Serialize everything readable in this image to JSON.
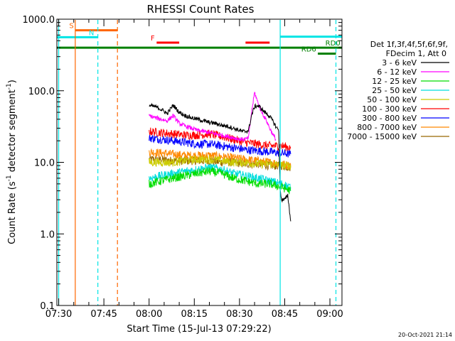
{
  "chart_data": {
    "type": "line",
    "title": "RHESSI Count Rates",
    "xlabel": "Start Time (15-Jul-13 07:29:22)",
    "ylabel_prefix": "Count Rate (s",
    "ylabel_sup": "-1",
    "ylabel_mid": " detector segment",
    "ylabel_sup2": "-1",
    "ylabel_suffix": ")",
    "y_scale": "log",
    "ylim": [
      0.1,
      1000
    ],
    "xlim_minutes": [
      -0.6,
      94
    ],
    "x_ticks": [
      {
        "minute": 0,
        "label": "07:30"
      },
      {
        "minute": 15,
        "label": "07:45"
      },
      {
        "minute": 30,
        "label": "08:00"
      },
      {
        "minute": 45,
        "label": "08:15"
      },
      {
        "minute": 60,
        "label": "08:30"
      },
      {
        "minute": 75,
        "label": "08:45"
      },
      {
        "minute": 90,
        "label": "09:00"
      }
    ],
    "y_ticks": [
      {
        "value": 1000,
        "label": "1000.0"
      },
      {
        "value": 100,
        "label": "100.0"
      },
      {
        "value": 10,
        "label": "10.0"
      },
      {
        "value": 1,
        "label": "1.0"
      },
      {
        "value": 0.1,
        "label": "0.1"
      }
    ],
    "legend_header": [
      "Det 1f,3f,4f,5f,6f,9f,",
      "FDecim 1, Att 0"
    ],
    "legend_position": "right",
    "series": [
      {
        "name": "3 - 6 keV",
        "color": "#000000",
        "x": [
          30,
          32,
          34,
          36,
          38,
          40,
          42,
          44,
          46,
          48,
          50,
          52,
          54,
          56,
          58,
          60,
          61,
          62,
          63,
          64,
          65,
          66,
          67,
          68,
          69,
          70,
          71,
          72,
          73,
          73.5,
          74,
          75,
          76,
          77
        ],
        "y": [
          62,
          60,
          55,
          48,
          63,
          50,
          45,
          42,
          40,
          38,
          36,
          35,
          33,
          32,
          30,
          28,
          27,
          27,
          28,
          45,
          60,
          62,
          58,
          52,
          48,
          44,
          38,
          32,
          28,
          4,
          3,
          3,
          3.5,
          1.5
        ]
      },
      {
        "name": "6 - 12 keV",
        "color": "#ff00ff",
        "x": [
          30,
          32,
          34,
          36,
          38,
          40,
          42,
          44,
          46,
          48,
          50,
          52,
          54,
          56,
          58,
          60,
          61,
          62,
          63,
          64,
          65,
          66,
          67,
          68,
          69,
          70,
          71,
          72
        ],
        "y": [
          45,
          42,
          40,
          38,
          45,
          35,
          32,
          30,
          28,
          27,
          26,
          25,
          24,
          23,
          22,
          21,
          21,
          21,
          22,
          50,
          95,
          70,
          55,
          45,
          38,
          30,
          25,
          21
        ]
      },
      {
        "name": "12 - 25 keV",
        "color": "#00dd00",
        "x": [
          30,
          34,
          38,
          42,
          46,
          50,
          54,
          58,
          62,
          66,
          70,
          74,
          77
        ],
        "y": [
          5,
          5.5,
          6,
          6.5,
          7,
          7.5,
          7,
          6,
          5.5,
          5,
          5,
          4.5,
          4
        ]
      },
      {
        "name": "25 - 50 keV",
        "color": "#00dddd",
        "x": [
          30,
          34,
          38,
          42,
          46,
          50,
          54,
          58,
          62,
          66,
          70,
          74,
          77
        ],
        "y": [
          6,
          6.5,
          7,
          7.5,
          8,
          8.5,
          8,
          7,
          6.5,
          6,
          5.5,
          5,
          4.5
        ]
      },
      {
        "name": "50 - 100 keV",
        "color": "#cccc00",
        "x": [
          30,
          34,
          38,
          42,
          46,
          50,
          54,
          58,
          62,
          66,
          70,
          74,
          77
        ],
        "y": [
          10,
          10,
          10,
          10.5,
          11,
          11,
          10.5,
          10,
          10,
          9.5,
          9.5,
          9,
          9
        ]
      },
      {
        "name": "100 - 300 keV",
        "color": "#ff0000",
        "x": [
          30,
          34,
          38,
          42,
          46,
          50,
          54,
          58,
          62,
          66,
          70,
          74,
          77
        ],
        "y": [
          27,
          26,
          25,
          24,
          24,
          25,
          23,
          21,
          19,
          18,
          17,
          17,
          16
        ]
      },
      {
        "name": "300 - 800 keV",
        "color": "#0000ff",
        "x": [
          30,
          34,
          38,
          42,
          46,
          50,
          54,
          58,
          62,
          66,
          70,
          74,
          77
        ],
        "y": [
          22,
          21,
          20,
          19,
          18,
          18,
          17,
          16,
          15,
          14.5,
          14,
          13.5,
          13
        ]
      },
      {
        "name": "800 - 7000 keV",
        "color": "#ff8800",
        "x": [
          30,
          34,
          38,
          42,
          46,
          50,
          54,
          58,
          62,
          66,
          70,
          74,
          77
        ],
        "y": [
          14,
          13.5,
          13,
          12.5,
          12.5,
          12.5,
          12,
          11.5,
          11,
          10.5,
          10,
          9.5,
          9
        ]
      },
      {
        "name": "7000 - 15000 keV",
        "color": "#996600",
        "x": [
          30,
          34,
          38,
          42,
          46,
          50,
          54,
          58,
          62,
          66,
          70,
          74,
          77
        ],
        "y": [
          11,
          11,
          10.5,
          10.5,
          10.5,
          10.5,
          10,
          10,
          9.5,
          9.5,
          9,
          9,
          8.5
        ]
      }
    ],
    "flags": [
      {
        "label": "S",
        "color": "#ff6600",
        "x_start": 5.5,
        "x_end": 19.5,
        "level": 700,
        "label_minute": 3.5
      },
      {
        "label": "N",
        "color": "#00e5e5",
        "x_start": -0.5,
        "x_end": 13,
        "level": 560,
        "label_minute": 10
      },
      {
        "label": "F",
        "color": "#ff0000",
        "x_start": 32.5,
        "x_end": 40,
        "level": 470,
        "label_minute": 30.5
      },
      {
        "label": "F",
        "color": "#ff0000",
        "x_start": 62,
        "x_end": 70,
        "level": 470,
        "label_minute": null
      },
      {
        "label": "RD0",
        "color": "#008000",
        "x_start": -0.5,
        "x_end": 94,
        "level": 400,
        "label_minute": 88.5
      },
      {
        "label": "RD6",
        "color": "#008000",
        "x_start": 86,
        "x_end": 92,
        "level": 330,
        "label_minute": 80.5
      },
      {
        "label": "",
        "color": "#00e5e5",
        "x_start": 73.5,
        "x_end": 94,
        "level": 570,
        "label_minute": null
      }
    ],
    "vlines": [
      {
        "minute": 0,
        "color": "#00e5e5",
        "style": "solid"
      },
      {
        "minute": 5.5,
        "color": "#ff6600",
        "style": "solid"
      },
      {
        "minute": 13,
        "color": "#00e5e5",
        "style": "dashed"
      },
      {
        "minute": 19.5,
        "color": "#ff6600",
        "style": "dashed"
      },
      {
        "minute": 73.5,
        "color": "#00e5e5",
        "style": "solid"
      },
      {
        "minute": 92,
        "color": "#00e5e5",
        "style": "dashed"
      }
    ],
    "footer": "20-Oct-2021 21:14"
  }
}
